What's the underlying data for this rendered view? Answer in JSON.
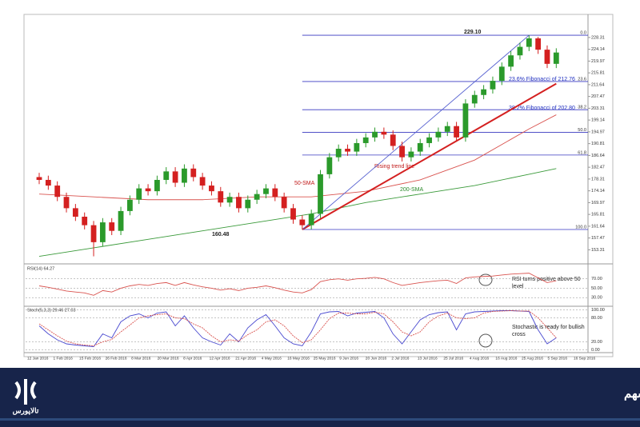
{
  "chart_data": {
    "type": "candlestick",
    "ylim": [
      148.9,
      235.9
    ],
    "yticks": [
      153.31,
      157.47,
      161.64,
      165.81,
      169.97,
      174.14,
      178.31,
      182.47,
      186.64,
      190.81,
      194.97,
      199.14,
      203.31,
      207.47,
      211.64,
      215.81,
      219.97,
      224.14,
      228.31
    ],
    "up_color": "#2b9a2b",
    "down_color": "#d42020",
    "candles": [
      [
        179,
        180.5,
        176.5,
        178
      ],
      [
        178,
        179.5,
        174.5,
        176
      ],
      [
        176,
        177.5,
        170.5,
        172
      ],
      [
        172,
        173.5,
        166.5,
        168
      ],
      [
        168,
        169.5,
        163.5,
        165
      ],
      [
        165,
        166.5,
        160.5,
        162
      ],
      [
        162,
        163.5,
        151,
        156
      ],
      [
        156,
        164.5,
        154.5,
        163
      ],
      [
        163,
        164.5,
        158.5,
        160
      ],
      [
        160,
        168.5,
        158.5,
        167
      ],
      [
        167,
        172.5,
        165.5,
        171
      ],
      [
        171,
        176.5,
        169.5,
        175
      ],
      [
        175,
        176.5,
        172.5,
        174
      ],
      [
        174,
        179.5,
        172.5,
        178
      ],
      [
        178,
        182.5,
        176.5,
        181
      ],
      [
        181,
        182.5,
        175.5,
        177
      ],
      [
        177,
        183.5,
        175.5,
        182
      ],
      [
        182,
        183.5,
        177.5,
        179
      ],
      [
        179,
        180.5,
        174.5,
        176
      ],
      [
        176,
        177.5,
        172.5,
        174
      ],
      [
        174,
        175.5,
        168.5,
        170
      ],
      [
        170,
        173.5,
        168.5,
        172
      ],
      [
        172,
        173.5,
        166.5,
        168
      ],
      [
        168,
        172.5,
        166.5,
        171
      ],
      [
        171,
        174.5,
        169.5,
        173
      ],
      [
        173,
        176.5,
        171.5,
        175
      ],
      [
        175,
        176.5,
        170.5,
        172
      ],
      [
        172,
        173.5,
        166.5,
        168
      ],
      [
        168,
        169.5,
        162.5,
        164
      ],
      [
        164,
        165.5,
        160.48,
        162
      ],
      [
        162,
        167.5,
        160.5,
        166
      ],
      [
        166,
        181.5,
        164.5,
        180
      ],
      [
        180,
        187.5,
        178.5,
        186
      ],
      [
        186,
        190.5,
        184.5,
        189
      ],
      [
        189,
        190.5,
        186.5,
        188
      ],
      [
        188,
        192.5,
        186.5,
        191
      ],
      [
        191,
        194.5,
        189.5,
        193
      ],
      [
        193,
        196.5,
        191.5,
        195
      ],
      [
        195,
        196.5,
        192.5,
        194
      ],
      [
        194,
        195.5,
        188.5,
        190
      ],
      [
        190,
        191.5,
        184.5,
        186
      ],
      [
        186,
        189.5,
        184.5,
        188
      ],
      [
        188,
        192.5,
        186.5,
        191
      ],
      [
        191,
        194.5,
        189.5,
        193
      ],
      [
        193,
        196.5,
        191.5,
        195
      ],
      [
        195,
        198.5,
        193.5,
        197
      ],
      [
        197,
        198.5,
        191.5,
        193
      ],
      [
        193,
        206.5,
        191.5,
        205
      ],
      [
        205,
        209.5,
        203.5,
        208
      ],
      [
        208,
        211.5,
        206.5,
        210
      ],
      [
        210,
        214.5,
        208.5,
        213
      ],
      [
        213,
        219.5,
        211.5,
        218
      ],
      [
        218,
        223.5,
        216.5,
        222
      ],
      [
        222,
        226.5,
        220.5,
        225
      ],
      [
        225,
        229.1,
        223.5,
        228
      ],
      [
        228,
        228.5,
        222.5,
        224
      ],
      [
        224,
        225.5,
        217.5,
        219
      ],
      [
        219,
        224.5,
        217.5,
        223
      ]
    ],
    "lines": [
      {
        "name": "50-SMA",
        "color": "#d9534f",
        "x": [
          0,
          6,
          12,
          18,
          24,
          30,
          36,
          42,
          48,
          54,
          57
        ],
        "values": [
          173,
          172,
          171,
          171,
          172,
          172,
          174,
          178,
          185,
          196,
          201
        ]
      },
      {
        "name": "200-SMA",
        "color": "#3a9a3a",
        "x": [
          0,
          6,
          12,
          18,
          24,
          30,
          36,
          42,
          48,
          54,
          57
        ],
        "values": [
          151,
          154,
          157,
          160,
          163,
          166,
          170,
          173,
          176,
          180,
          182
        ]
      },
      {
        "name": "Rising trend line",
        "color": "#d42020",
        "x": [
          29,
          57
        ],
        "values": [
          160.48,
          212
        ]
      },
      {
        "color": "#5560d0",
        "x": [
          29,
          54
        ],
        "values": [
          160.48,
          229.1
        ]
      }
    ],
    "fib_levels": [
      {
        "value": 229.1,
        "label": "0.0"
      },
      {
        "value": 212.76,
        "label": "23.6"
      },
      {
        "value": 202.8,
        "label": "38.2"
      },
      {
        "value": 194.79,
        "label": "50.0"
      },
      {
        "value": 186.78,
        "label": "61.8"
      },
      {
        "value": 160.48,
        "label": "100.0"
      }
    ],
    "annotations": {
      "high": "229.10",
      "low": "160.48",
      "fib236": "23.6% Fibonacci of 212.76",
      "fib382": "38.2% Fibonacci of 202.80",
      "trend": "Rising trend line",
      "sma50": "50-SMA",
      "sma200": "200-SMA"
    },
    "rsi": {
      "label": "RSI(14) 64.27",
      "color": "#d9534f",
      "ylim": [
        15,
        95
      ],
      "yticks": [
        {
          "value": 70,
          "label": "70.00"
        },
        {
          "value": 50,
          "label": "50.00"
        },
        {
          "value": 30,
          "label": "30.00"
        }
      ],
      "values": [
        55,
        52,
        48,
        44,
        42,
        40,
        35,
        45,
        42,
        50,
        55,
        58,
        56,
        60,
        62,
        56,
        62,
        57,
        53,
        50,
        46,
        49,
        45,
        50,
        52,
        55,
        51,
        46,
        42,
        40,
        47,
        64,
        68,
        70,
        67,
        70,
        71,
        73,
        70,
        62,
        56,
        59,
        62,
        64,
        66,
        67,
        60,
        72,
        74,
        75,
        76,
        78,
        80,
        81,
        82,
        72,
        62,
        66
      ],
      "note": "RSI turns positive above 50 level"
    },
    "stoch": {
      "label": "Stoch(5,3,3) 29.46 27.03",
      "ylim": [
        -5,
        105
      ],
      "yticks": [
        {
          "value": 100,
          "label": "100.00"
        },
        {
          "value": 80,
          "label": "80.00"
        },
        {
          "value": 20,
          "label": "20.00"
        },
        {
          "value": 0,
          "label": "0.00"
        }
      ],
      "series": [
        {
          "color": "#4a4ad0",
          "values": [
            60,
            40,
            25,
            15,
            12,
            10,
            8,
            40,
            30,
            70,
            85,
            90,
            80,
            92,
            95,
            60,
            85,
            55,
            30,
            20,
            12,
            40,
            20,
            55,
            75,
            88,
            60,
            30,
            15,
            10,
            45,
            90,
            95,
            96,
            85,
            92,
            94,
            96,
            80,
            40,
            15,
            45,
            75,
            88,
            93,
            95,
            50,
            90,
            95,
            96,
            97,
            98,
            98,
            97,
            96,
            50,
            15,
            30
          ]
        },
        {
          "color": "#d9534f",
          "values": [
            65,
            50,
            35,
            22,
            15,
            12,
            10,
            20,
            26,
            45,
            62,
            80,
            85,
            88,
            90,
            80,
            78,
            65,
            55,
            35,
            20,
            25,
            22,
            38,
            50,
            70,
            75,
            60,
            35,
            18,
            25,
            50,
            78,
            92,
            92,
            90,
            90,
            94,
            90,
            70,
            45,
            35,
            45,
            70,
            85,
            92,
            80,
            78,
            80,
            92,
            96,
            97,
            98,
            97,
            97,
            80,
            55,
            30
          ]
        }
      ],
      "note": "Stochastic is ready for bullish cross"
    },
    "date_labels": [
      "12 Jan 2016",
      "1 Feb 2016",
      "15 Feb 2016",
      "26 Feb 2016",
      "8 Mar 2016",
      "20 Mar 2016",
      "8 Apr 2016",
      "12 Apr 2016",
      "21 Apr 2016",
      "4 May 2016",
      "16 May 2016",
      "25 May 2016",
      "9 Jun 2016",
      "20 Jun 2016",
      "2 Jul 2016",
      "13 Jul 2016",
      "25 Jul 2016",
      "4 Aug 2016",
      "16 Aug 2016",
      "25 Aug 2016",
      "5 Sep 2016",
      "16 Sep 2016"
    ]
  },
  "footer": {
    "title": "نمونه‌ای از یک تحلیل تکنیکال برای تشخیص روند سهم",
    "logo": "تالاپورس"
  }
}
